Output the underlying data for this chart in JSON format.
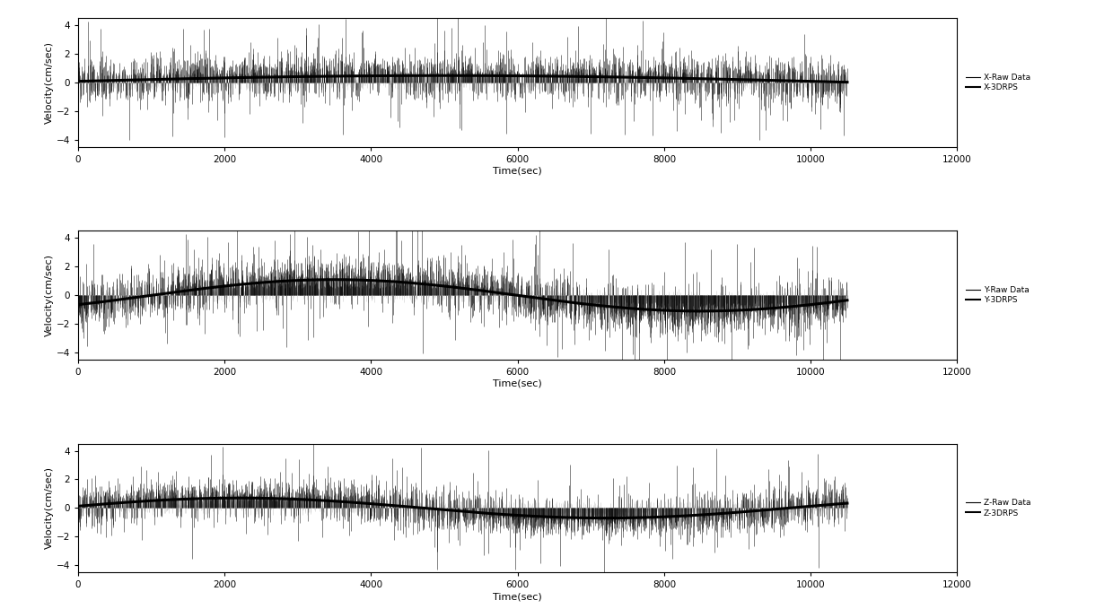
{
  "panels": [
    {
      "raw_label": "X-Raw Data",
      "smooth_label": "X-3DRPS"
    },
    {
      "raw_label": "Y-Raw Data",
      "smooth_label": "Y-3DRPS"
    },
    {
      "raw_label": "Z-Raw Data",
      "smooth_label": "Z-3DRPS"
    }
  ],
  "xlabel": "Time(sec)",
  "ylabel": "Velocity(cm/sec)",
  "xlim": [
    0,
    12000
  ],
  "xticks": [
    0,
    2000,
    4000,
    6000,
    8000,
    10000,
    12000
  ],
  "ylim": [
    -4.5,
    4.5
  ],
  "yticks": [
    -4,
    -2,
    0,
    2,
    4
  ],
  "n_points": 10500,
  "background_color": "#ffffff",
  "raw_color_dark": "#000000",
  "raw_color_light": "#aaaaaa",
  "smooth_color": "#000000",
  "legend_fontsize": 6.5,
  "tick_fontsize": 7.5,
  "label_fontsize": 8,
  "smooth_linewidth": 2.2,
  "raw_linewidth": 0.4
}
